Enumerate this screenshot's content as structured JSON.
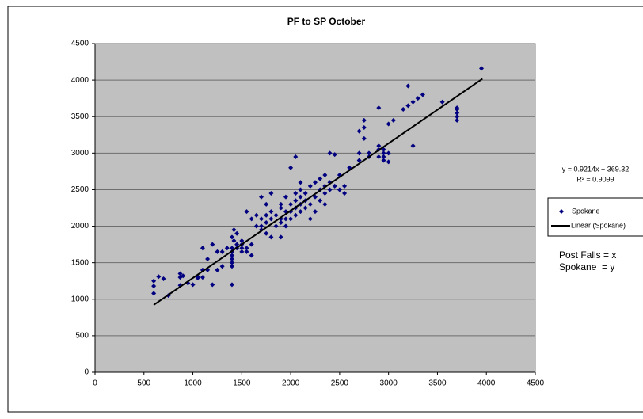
{
  "chart_data": {
    "type": "scatter",
    "title": "PF to SP October",
    "series": [
      {
        "name": "Spokane",
        "color": "#000080",
        "x": [
          600,
          600,
          600,
          650,
          700,
          750,
          870,
          870,
          870,
          900,
          950,
          1000,
          1050,
          1050,
          1100,
          1100,
          1100,
          1150,
          1150,
          1200,
          1200,
          1250,
          1250,
          1300,
          1300,
          1350,
          1400,
          1400,
          1400,
          1400,
          1400,
          1400,
          1400,
          1400,
          1420,
          1420,
          1450,
          1450,
          1450,
          1500,
          1500,
          1500,
          1500,
          1550,
          1550,
          1550,
          1600,
          1600,
          1600,
          1650,
          1650,
          1700,
          1700,
          1700,
          1700,
          1750,
          1750,
          1750,
          1750,
          1800,
          1800,
          1800,
          1800,
          1850,
          1850,
          1900,
          1900,
          1900,
          1900,
          1900,
          1950,
          1950,
          1950,
          1950,
          2000,
          2000,
          2000,
          2000,
          2050,
          2050,
          2050,
          2050,
          2050,
          2100,
          2100,
          2100,
          2100,
          2100,
          2150,
          2150,
          2150,
          2200,
          2200,
          2200,
          2250,
          2250,
          2250,
          2300,
          2300,
          2300,
          2350,
          2350,
          2350,
          2350,
          2400,
          2400,
          2400,
          2450,
          2450,
          2500,
          2500,
          2550,
          2550,
          2600,
          2700,
          2700,
          2700,
          2750,
          2750,
          2750,
          2800,
          2800,
          2900,
          2900,
          2900,
          2900,
          2950,
          2950,
          2950,
          2950,
          3000,
          3000,
          3000,
          3050,
          3150,
          3200,
          3200,
          3250,
          3250,
          3300,
          3350,
          3550,
          3700,
          3700,
          3700,
          3700,
          3700,
          3950
        ],
        "values": [
          1250,
          1180,
          1080,
          1310,
          1280,
          1050,
          1300,
          1350,
          1190,
          1320,
          1220,
          1200,
          1290,
          1310,
          1300,
          1400,
          1700,
          1400,
          1550,
          1750,
          1200,
          1400,
          1650,
          1450,
          1650,
          1700,
          1450,
          1500,
          1550,
          1600,
          1650,
          1700,
          1200,
          1850,
          1950,
          1800,
          1750,
          1900,
          1700,
          1800,
          1750,
          1700,
          1650,
          1650,
          1700,
          2200,
          1750,
          1600,
          2100,
          2000,
          2150,
          1950,
          2400,
          2100,
          2000,
          2150,
          2050,
          1900,
          2300,
          2450,
          2100,
          2200,
          1850,
          2000,
          2150,
          2250,
          2100,
          2300,
          2050,
          1850,
          2200,
          2400,
          2100,
          2000,
          2200,
          2800,
          2300,
          2100,
          2350,
          2450,
          2950,
          2250,
          2150,
          2400,
          2500,
          2200,
          2300,
          2600,
          2250,
          2350,
          2450,
          2300,
          2100,
          2550,
          2600,
          2400,
          2200,
          2500,
          2350,
          2650,
          2550,
          2450,
          2300,
          2700,
          2600,
          3000,
          2500,
          2980,
          2550,
          2500,
          2700,
          2450,
          2550,
          2800,
          3300,
          3000,
          2900,
          3350,
          3450,
          3200,
          3000,
          2950,
          3620,
          3100,
          3050,
          2950,
          3050,
          3000,
          2950,
          2900,
          3400,
          3000,
          2880,
          3450,
          3600,
          3920,
          3650,
          3100,
          3700,
          3750,
          3800,
          3700,
          3600,
          3550,
          3500,
          3450,
          3620,
          4160
        ]
      }
    ],
    "trendline": {
      "name": "Linear (Spokane)",
      "color": "#000000",
      "equation": "y = 0.9214x + 369.32",
      "r2": "R² = 0.9099",
      "x": [
        600,
        3960
      ],
      "values": [
        922,
        4018
      ]
    },
    "annotations": [
      "Post Falls = x",
      "Spokane  = y"
    ],
    "xlim": [
      0,
      4500
    ],
    "xticks": [
      0,
      500,
      1000,
      1500,
      2000,
      2500,
      3000,
      3500,
      4000,
      4500
    ],
    "ylim": [
      0,
      4500
    ],
    "yticks": [
      0,
      500,
      1000,
      1500,
      2000,
      2500,
      3000,
      3500,
      4000,
      4500
    ],
    "grid": true,
    "legend": "right"
  }
}
